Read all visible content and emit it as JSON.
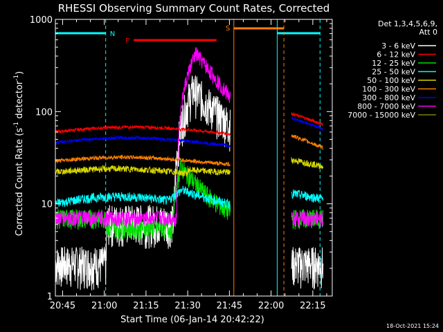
{
  "chart_data": {
    "type": "line",
    "title": "RHESSI Observing Summary Count Rates, Corrected",
    "xlabel": "Start Time (06-Jan-14 20:42:22)",
    "ylabel_main": "Corrected Count Rate (s",
    "ylabel_sup1": "-1",
    "ylabel_mid": " detector",
    "ylabel_sup2": "-1",
    "ylabel_end": ")",
    "yscale": "log",
    "ylim": [
      1,
      1000
    ],
    "xlim_minutes": [
      20.7,
      22.3
    ],
    "x_ticks": [
      "20:45",
      "21:00",
      "21:15",
      "21:30",
      "21:45",
      "22:00",
      "22:15"
    ],
    "y_ticks": [
      "1",
      "10",
      "100",
      "1000"
    ],
    "detector_label": "Det 1,3,4,5,6,9,",
    "attenuator_label": "Att 0",
    "timestamp": "18-Oct-2021 15:24",
    "series": [
      {
        "name": "3 - 6 keV",
        "color": "#ffffff"
      },
      {
        "name": "6 - 12 keV",
        "color": "#ff0000"
      },
      {
        "name": "12 - 25 keV",
        "color": "#00e000"
      },
      {
        "name": "25 - 50 keV",
        "color": "#00ffff"
      },
      {
        "name": "50 - 100 keV",
        "color": "#d8d800"
      },
      {
        "name": "100 - 300 keV",
        "color": "#ff8000"
      },
      {
        "name": "300 - 800 keV",
        "color": "#0000ff"
      },
      {
        "name": "800 - 7000 keV",
        "color": "#ff00ff"
      },
      {
        "name": "7000 - 15000 keV",
        "color": "#808000"
      }
    ],
    "annotations": {
      "night_label": "N",
      "flare_label": "F",
      "saa_label": "S"
    }
  }
}
